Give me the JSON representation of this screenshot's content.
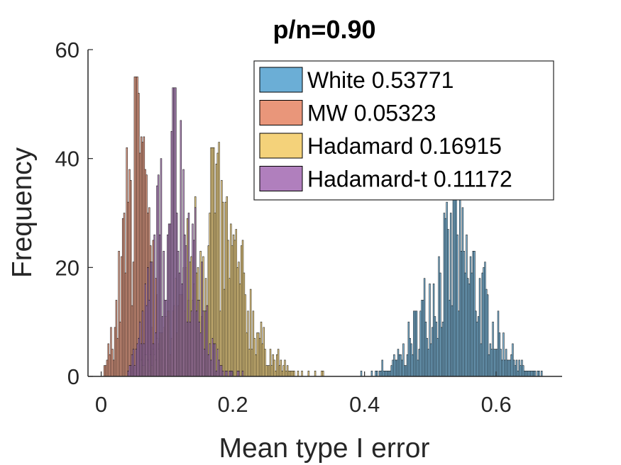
{
  "chart_data": {
    "type": "histogram",
    "title": "p/n=0.90",
    "xlabel": "Mean type I error",
    "ylabel": "Frequency",
    "xlim": [
      -0.02,
      0.7
    ],
    "ylim": [
      0,
      60
    ],
    "xticks": [
      0,
      0.2,
      0.4,
      0.6
    ],
    "xtick_labels": [
      "0",
      "0.2",
      "0.4",
      "0.6"
    ],
    "yticks": [
      0,
      20,
      40,
      60
    ],
    "ytick_labels": [
      "0",
      "20",
      "40",
      "60"
    ],
    "grid": false,
    "legend_position": "top-right",
    "bin_width": 0.002,
    "series": [
      {
        "name": "White 0.53771",
        "color": "#6baed6",
        "range": [
          0.378,
          0.68
        ],
        "mean": 0.53771,
        "sd": 0.045,
        "n": 1000,
        "peak_frequency": 33
      },
      {
        "name": "MW 0.05323",
        "color": "#e9967a",
        "range": [
          0.004,
          0.13
        ],
        "mean": 0.05323,
        "sd": 0.02,
        "n": 1000,
        "peak_frequency": 55
      },
      {
        "name": "Hadamard 0.16915",
        "color": "#f4d27a",
        "range": [
          0.06,
          0.34
        ],
        "mean": 0.16915,
        "sd": 0.045,
        "n": 1000,
        "peak_frequency": 42
      },
      {
        "name": "Hadamard-t 0.11172",
        "color": "#b07fbd",
        "range": [
          0.04,
          0.22
        ],
        "mean": 0.11172,
        "sd": 0.03,
        "n": 1000,
        "peak_frequency": 53
      }
    ]
  }
}
